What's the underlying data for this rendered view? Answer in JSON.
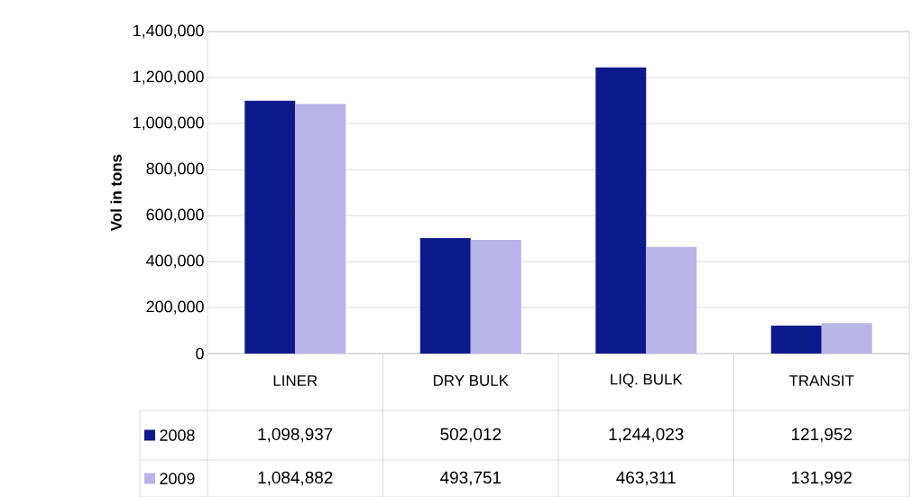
{
  "chart_data": {
    "type": "bar",
    "ylabel": "Vol in tons",
    "categories": [
      "LINER",
      "DRY BULK",
      "LIQ. BULK",
      "TRANSIT"
    ],
    "series": [
      {
        "name": "2008",
        "color": "#0d1a8c",
        "values": [
          1098937,
          502012,
          1244023,
          121952
        ],
        "value_labels": [
          "1,098,937",
          "502,012",
          "1,244,023",
          "121,952"
        ]
      },
      {
        "name": "2009",
        "color": "#b8b4e8",
        "values": [
          1084882,
          493751,
          463311,
          131992
        ],
        "value_labels": [
          "1,084,882",
          "493,751",
          "463,311",
          "131,992"
        ]
      }
    ],
    "ylim": [
      0,
      1400000
    ],
    "yticks": [
      0,
      {
        "value": 200000,
        "label": "200,000"
      },
      {
        "value": 400000,
        "label": "400,000"
      },
      {
        "value": 600000,
        "label": "600,000"
      },
      {
        "value": 800000,
        "label": "800,000"
      },
      {
        "value": 1000000,
        "label": "1,000,000"
      },
      {
        "value": 1200000,
        "label": "1,200,000"
      },
      {
        "value": 1400000,
        "label": "1,400,000"
      }
    ],
    "grid": "y",
    "legend": "bottom"
  }
}
